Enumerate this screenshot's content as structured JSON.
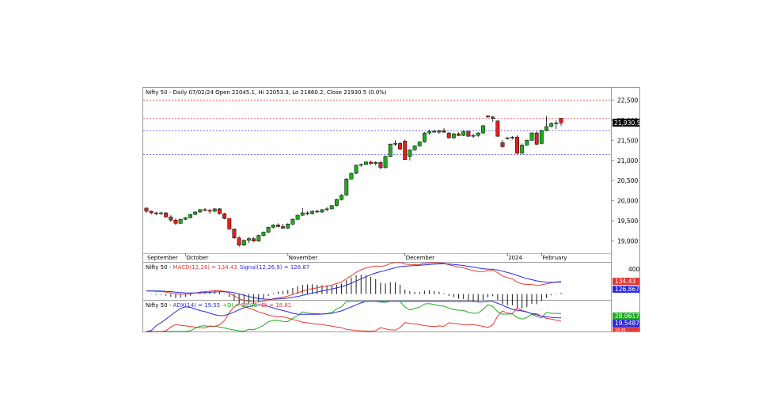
{
  "chart_data": {
    "type": "candlestick",
    "title": "Nifty 50 - Daily 07/02/24 Open 22045.1, Hi 22053.3, Lo 21860.2, Close 21930.5 (0.0%)",
    "price_axis": {
      "ylim": [
        18700,
        22800
      ],
      "ticks": [
        "22,500",
        "22,000",
        "21,500",
        "21,000",
        "20,500",
        "20,000",
        "19,500",
        "19,000"
      ],
      "tick_values": [
        22500,
        22000,
        21500,
        21000,
        20500,
        20000,
        19500,
        19000
      ]
    },
    "last_price_label": "21,930.5",
    "reference_lines": [
      {
        "value": 22500,
        "style": "dashed",
        "color": "#e53935"
      },
      {
        "value": 22050,
        "style": "dashed",
        "color": "#e53935"
      },
      {
        "value": 21750,
        "style": "dashed",
        "color": "#3a3ad6"
      },
      {
        "value": 21150,
        "style": "dashed",
        "color": "#3a3ad6"
      }
    ],
    "x_labels": [
      "September",
      "October",
      "November",
      "December",
      "2024",
      "February"
    ],
    "candles": [
      [
        19820,
        19830,
        19700,
        19740
      ],
      [
        19740,
        19760,
        19660,
        19700
      ],
      [
        19700,
        19720,
        19640,
        19680
      ],
      [
        19680,
        19730,
        19650,
        19700
      ],
      [
        19700,
        19720,
        19580,
        19600
      ],
      [
        19600,
        19640,
        19480,
        19520
      ],
      [
        19520,
        19560,
        19400,
        19440
      ],
      [
        19440,
        19560,
        19420,
        19540
      ],
      [
        19540,
        19600,
        19520,
        19580
      ],
      [
        19580,
        19680,
        19560,
        19660
      ],
      [
        19660,
        19740,
        19640,
        19720
      ],
      [
        19720,
        19800,
        19700,
        19780
      ],
      [
        19780,
        19820,
        19740,
        19760
      ],
      [
        19760,
        19800,
        19680,
        19740
      ],
      [
        19740,
        19820,
        19720,
        19800
      ],
      [
        19800,
        19820,
        19660,
        19680
      ],
      [
        19680,
        19700,
        19540,
        19560
      ],
      [
        19560,
        19560,
        19280,
        19300
      ],
      [
        19300,
        19310,
        19050,
        19080
      ],
      [
        19080,
        19120,
        18860,
        18900
      ],
      [
        18900,
        19040,
        18880,
        19020
      ],
      [
        19020,
        19100,
        18950,
        19060
      ],
      [
        19060,
        19090,
        18980,
        19000
      ],
      [
        19000,
        19160,
        18980,
        19140
      ],
      [
        19140,
        19240,
        19120,
        19220
      ],
      [
        19220,
        19360,
        19200,
        19340
      ],
      [
        19340,
        19420,
        19320,
        19400
      ],
      [
        19400,
        19440,
        19340,
        19360
      ],
      [
        19360,
        19420,
        19300,
        19320
      ],
      [
        19320,
        19440,
        19300,
        19420
      ],
      [
        19420,
        19560,
        19400,
        19540
      ],
      [
        19540,
        19660,
        19520,
        19640
      ],
      [
        19640,
        19820,
        19620,
        19700
      ],
      [
        19700,
        19740,
        19640,
        19680
      ],
      [
        19680,
        19760,
        19660,
        19740
      ],
      [
        19740,
        19780,
        19700,
        19720
      ],
      [
        19720,
        19800,
        19700,
        19780
      ],
      [
        19780,
        19840,
        19740,
        19800
      ],
      [
        19800,
        19900,
        19780,
        19880
      ],
      [
        19880,
        20050,
        19860,
        20030
      ],
      [
        20030,
        20160,
        20010,
        20140
      ],
      [
        20140,
        20560,
        20120,
        20540
      ],
      [
        20540,
        20700,
        20520,
        20680
      ],
      [
        20680,
        20900,
        20660,
        20880
      ],
      [
        20880,
        20920,
        20840,
        20900
      ],
      [
        20900,
        20980,
        20880,
        20960
      ],
      [
        20960,
        20990,
        20900,
        20920
      ],
      [
        20920,
        20980,
        20880,
        20950
      ],
      [
        20950,
        20980,
        20780,
        20820
      ],
      [
        20820,
        21120,
        20800,
        21100
      ],
      [
        21100,
        21420,
        21080,
        21400
      ],
      [
        21400,
        21500,
        21360,
        21420
      ],
      [
        21420,
        21460,
        21260,
        21280
      ],
      [
        21480,
        21520,
        21020,
        21020
      ],
      [
        21100,
        21280,
        21000,
        21260
      ],
      [
        21260,
        21380,
        21240,
        21360
      ],
      [
        21360,
        21480,
        21340,
        21460
      ],
      [
        21460,
        21700,
        21440,
        21680
      ],
      [
        21680,
        21760,
        21640,
        21720
      ],
      [
        21720,
        21760,
        21690,
        21700
      ],
      [
        21700,
        21760,
        21660,
        21740
      ],
      [
        21740,
        21800,
        21680,
        21700
      ],
      [
        21680,
        21700,
        21540,
        21560
      ],
      [
        21560,
        21680,
        21540,
        21660
      ],
      [
        21660,
        21700,
        21600,
        21620
      ],
      [
        21620,
        21740,
        21600,
        21720
      ],
      [
        21720,
        21740,
        21580,
        21600
      ],
      [
        21600,
        21660,
        21560,
        21620
      ],
      [
        21620,
        21700,
        21580,
        21680
      ],
      [
        21680,
        21880,
        21660,
        21860
      ],
      [
        22100,
        22120,
        22050,
        22080
      ],
      [
        22080,
        22100,
        21960,
        22040
      ],
      [
        21980,
        21990,
        21580,
        21600
      ],
      [
        21440,
        21500,
        21320,
        21340
      ],
      [
        21540,
        21580,
        21520,
        21560
      ],
      [
        21560,
        21600,
        21520,
        21580
      ],
      [
        21580,
        21620,
        21160,
        21180
      ],
      [
        21180,
        21420,
        21160,
        21380
      ],
      [
        21380,
        21520,
        21360,
        21500
      ],
      [
        21500,
        21700,
        21480,
        21680
      ],
      [
        21680,
        21720,
        21380,
        21400
      ],
      [
        21420,
        21760,
        21400,
        21740
      ],
      [
        21740,
        22100,
        21720,
        21840
      ],
      [
        21840,
        21940,
        21820,
        21920
      ],
      [
        21920,
        21990,
        21780,
        21930
      ],
      [
        22045,
        22053,
        21860,
        21930
      ]
    ],
    "macd": {
      "label": "Nifty 50 - ",
      "macd_label": "MACD(12,26) = 134.43",
      "signal_label": "Signal(12,26,9) = 126.87",
      "ylim": [
        -140,
        440
      ],
      "tick": "400",
      "tick_value": 400,
      "badge_macd": "134.43",
      "badge_signal": "126.867",
      "macd_color": "#e53935",
      "signal_color": "#2b2be0"
    },
    "adx": {
      "label": "Nifty 50 - ",
      "adx_label": "ADX(14) = 19.55",
      "pdi_label": "+DI = 28.06",
      "ndi_label": "-DI = 18.81",
      "ylim": [
        6,
        46
      ],
      "badge_pdi": "28.0617",
      "badge_adx": "19.5487",
      "badge_ndi": "18.81",
      "adx_color": "#2b2be0",
      "pdi_color": "#22aa22",
      "ndi_color": "#e53935"
    }
  }
}
